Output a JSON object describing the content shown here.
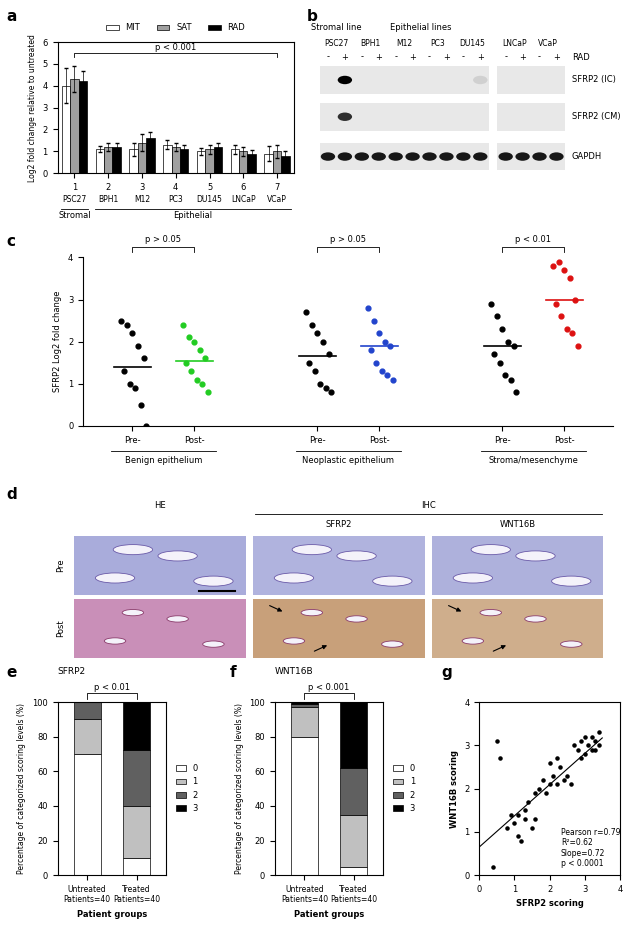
{
  "chart_data": [
    {
      "panel": "a",
      "type": "bar",
      "ylabel": "Log2 fold change relative to untreated",
      "categories": [
        "1",
        "2",
        "3",
        "4",
        "5",
        "6",
        "7"
      ],
      "cell_lines": [
        "PSC27",
        "BPH1",
        "M12",
        "PC3",
        "DU145",
        "LNCaP",
        "VCaP"
      ],
      "groups": [
        {
          "label": "Stromal",
          "span": [
            0,
            0
          ]
        },
        {
          "label": "Epithelial",
          "span": [
            1,
            6
          ]
        }
      ],
      "series": [
        {
          "name": "MIT",
          "color": "#ffffff",
          "values": [
            4.0,
            1.1,
            1.1,
            1.3,
            1.0,
            1.1,
            0.9
          ],
          "errors": [
            0.8,
            0.15,
            0.3,
            0.2,
            0.15,
            0.2,
            0.35
          ]
        },
        {
          "name": "SAT",
          "color": "#a0a0a0",
          "values": [
            4.3,
            1.2,
            1.4,
            1.2,
            1.1,
            1.0,
            1.0
          ],
          "errors": [
            0.6,
            0.2,
            0.4,
            0.2,
            0.2,
            0.2,
            0.3
          ]
        },
        {
          "name": "RAD",
          "color": "#000000",
          "values": [
            4.2,
            1.2,
            1.6,
            1.1,
            1.2,
            0.9,
            0.8
          ],
          "errors": [
            0.5,
            0.2,
            0.3,
            0.2,
            0.2,
            0.15,
            0.2
          ]
        }
      ],
      "annotation": {
        "text": "p < 0.001",
        "y": 5.5
      },
      "ylim": [
        0,
        6
      ],
      "yticks": [
        0,
        1,
        2,
        3,
        4,
        5,
        6
      ],
      "legend": "upper center"
    },
    {
      "panel": "c",
      "type": "scatter",
      "ylabel": "SFRP2 Log2 fold change",
      "groups": [
        {
          "label": "Benign epithelium",
          "p": "p > 0.05",
          "sets": [
            {
              "name": "Pre-",
              "color": "#000000",
              "mean": 1.4,
              "values": [
                2.5,
                2.4,
                2.2,
                1.9,
                1.6,
                1.3,
                1.0,
                0.9,
                0.5,
                0.0
              ]
            },
            {
              "name": "Post-",
              "color": "#22cc22",
              "mean": 1.55,
              "values": [
                2.4,
                2.1,
                2.0,
                1.8,
                1.6,
                1.5,
                1.3,
                1.1,
                1.0,
                0.8
              ]
            }
          ]
        },
        {
          "label": "Neoplastic epithelium",
          "p": "p > 0.05",
          "sets": [
            {
              "name": "Pre-",
              "color": "#000000",
              "mean": 1.65,
              "values": [
                2.7,
                2.4,
                2.2,
                2.0,
                1.7,
                1.5,
                1.3,
                1.0,
                0.9,
                0.8
              ]
            },
            {
              "name": "Post-",
              "color": "#2244cc",
              "mean": 1.9,
              "values": [
                2.8,
                2.5,
                2.2,
                2.0,
                1.9,
                1.8,
                1.5,
                1.3,
                1.2,
                1.1
              ]
            }
          ]
        },
        {
          "label": "Stroma/mesenchyme",
          "p": "p < 0.01",
          "sets": [
            {
              "name": "Pre-",
              "color": "#000000",
              "mean": 1.9,
              "values": [
                2.9,
                2.6,
                2.3,
                2.0,
                1.9,
                1.7,
                1.5,
                1.2,
                1.1,
                0.8
              ]
            },
            {
              "name": "Post-",
              "color": "#dd1111",
              "mean": 3.0,
              "values": [
                3.8,
                3.9,
                3.7,
                3.5,
                3.0,
                2.9,
                2.6,
                2.3,
                2.2,
                1.9
              ]
            }
          ]
        }
      ],
      "ylim": [
        0,
        4
      ],
      "yticks": [
        0,
        1,
        2,
        3,
        4
      ]
    },
    {
      "panel": "e",
      "type": "bar",
      "stacked": true,
      "title": "SFRP2",
      "annotation": "p < 0.01",
      "xlabel": "Patient groups",
      "ylabel": "Percentage of categorized scoring levels (%)",
      "categories": [
        "Untreated\nPatients=40",
        "Treated\nPatients=40"
      ],
      "series": [
        {
          "name": "0",
          "color": "#ffffff",
          "values": [
            70,
            10
          ]
        },
        {
          "name": "1",
          "color": "#c0c0c0",
          "values": [
            20,
            30
          ]
        },
        {
          "name": "2",
          "color": "#606060",
          "values": [
            10,
            32
          ]
        },
        {
          "name": "3",
          "color": "#000000",
          "values": [
            0,
            28
          ]
        }
      ],
      "ylim": [
        0,
        100
      ],
      "yticks": [
        0,
        20,
        40,
        60,
        80,
        100
      ],
      "legend": "center left"
    },
    {
      "panel": "f",
      "type": "bar",
      "stacked": true,
      "title": "WNT16B",
      "annotation": "p < 0.001",
      "xlabel": "Patient groups",
      "ylabel": "Percentage of categorized scoring levels (%)",
      "categories": [
        "Untreated\nPatients=40",
        "Treated\nPatients=40"
      ],
      "series": [
        {
          "name": "0",
          "color": "#ffffff",
          "values": [
            80,
            5
          ]
        },
        {
          "name": "1",
          "color": "#c0c0c0",
          "values": [
            17,
            30
          ]
        },
        {
          "name": "2",
          "color": "#606060",
          "values": [
            2,
            27
          ]
        },
        {
          "name": "3",
          "color": "#000000",
          "values": [
            1,
            38
          ]
        }
      ],
      "ylim": [
        0,
        100
      ],
      "yticks": [
        0,
        20,
        40,
        60,
        80,
        100
      ],
      "legend": "center left"
    },
    {
      "panel": "g",
      "type": "scatter",
      "xlabel": "SFRP2 scoring",
      "ylabel": "WNT16B scoring",
      "x": [
        0.4,
        0.5,
        0.6,
        0.8,
        0.9,
        1.0,
        1.1,
        1.1,
        1.2,
        1.3,
        1.3,
        1.4,
        1.5,
        1.6,
        1.6,
        1.7,
        1.8,
        1.9,
        2.0,
        2.0,
        2.1,
        2.2,
        2.2,
        2.3,
        2.4,
        2.5,
        2.6,
        2.7,
        2.8,
        2.9,
        2.9,
        3.0,
        3.1,
        3.2,
        3.2,
        3.3,
        3.3,
        3.4,
        3.4,
        3.0
      ],
      "values": [
        0.2,
        3.1,
        2.7,
        1.1,
        1.4,
        1.2,
        1.4,
        0.9,
        0.8,
        1.3,
        1.5,
        1.7,
        1.1,
        1.9,
        1.3,
        2.0,
        2.2,
        1.9,
        2.6,
        2.1,
        2.3,
        2.1,
        2.7,
        2.5,
        2.2,
        2.3,
        2.1,
        3.0,
        2.9,
        2.7,
        3.1,
        2.8,
        3.0,
        2.9,
        3.2,
        3.1,
        2.9,
        3.3,
        3.0,
        3.2
      ],
      "fit_line": {
        "x": [
          0,
          3.5
        ],
        "values": [
          0.65,
          3.17
        ]
      },
      "annotation": "Pearson r=0.79\nR²=0.62\nSlope=0.72\np < 0.0001",
      "color": "#000000",
      "xlim": [
        0,
        4
      ],
      "xticks": [
        0,
        1,
        2,
        3,
        4
      ],
      "ylim": [
        0,
        4
      ],
      "yticks": [
        0,
        1,
        2,
        3,
        4
      ]
    }
  ],
  "blot": {
    "panel": "b",
    "headers": [
      {
        "label": "Stromal line",
        "lanes": [
          0,
          0
        ]
      },
      {
        "label": "Epithelial lines",
        "lanes": [
          1,
          4
        ]
      }
    ],
    "lanes": [
      "PSC27",
      "BPH1",
      "M12",
      "PC3",
      "DU145",
      "LNCaP",
      "VCaP"
    ],
    "split_after": 4,
    "treatment": {
      "label": "RAD",
      "levels": [
        "-",
        "+"
      ]
    },
    "rows": [
      {
        "name": "SFRP2 (IC)",
        "intensity": [
          0,
          1.0,
          0,
          0,
          0,
          0,
          0,
          0,
          0,
          0.1,
          0,
          0,
          0,
          0
        ]
      },
      {
        "name": "SFRP2 (CM)",
        "intensity": [
          0,
          0.8,
          0,
          0,
          0,
          0,
          0,
          0,
          0,
          0,
          0,
          0,
          0,
          0
        ]
      },
      {
        "name": "GAPDH",
        "intensity": [
          0.9,
          0.9,
          0.9,
          0.9,
          0.9,
          0.9,
          0.9,
          0.9,
          0.9,
          0.9,
          0.9,
          0.9,
          0.9,
          0.9
        ]
      }
    ]
  },
  "histology": {
    "panel": "d",
    "columns": [
      "HE",
      "SFRP2",
      "WNT16B"
    ],
    "column_group": {
      "label": "IHC",
      "columns": [
        1,
        2
      ]
    },
    "rows": [
      "Pre",
      "Post"
    ]
  }
}
